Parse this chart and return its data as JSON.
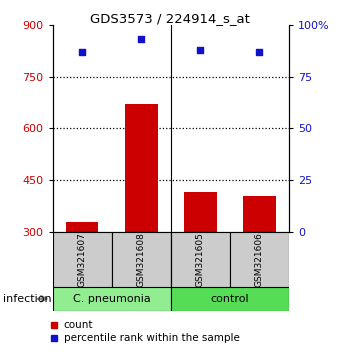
{
  "title": "GDS3573 / 224914_s_at",
  "samples": [
    "GSM321607",
    "GSM321608",
    "GSM321605",
    "GSM321606"
  ],
  "counts": [
    330,
    670,
    415,
    405
  ],
  "percentiles": [
    87,
    93,
    88,
    87
  ],
  "group_colors": {
    "C. pneumonia": "#90EE90",
    "control": "#55DD55"
  },
  "ylim_left": [
    300,
    900
  ],
  "ylim_right": [
    0,
    100
  ],
  "yticks_left": [
    300,
    450,
    600,
    750,
    900
  ],
  "yticks_right": [
    0,
    25,
    50,
    75,
    100
  ],
  "ytick_labels_right": [
    "0",
    "25",
    "50",
    "75",
    "100%"
  ],
  "bar_color": "#CC0000",
  "dot_color": "#1111CC",
  "bar_bottom": 300,
  "legend_count_label": "count",
  "legend_pct_label": "percentile rank within the sample",
  "infection_label": "infection",
  "group_label_1": "C. pneumonia",
  "group_label_2": "control",
  "dotted_lines": [
    450,
    600,
    750
  ],
  "bar_width": 0.55,
  "sample_box_color": "#CCCCCC",
  "left_color": "#CC0000",
  "right_color": "#1111CC"
}
